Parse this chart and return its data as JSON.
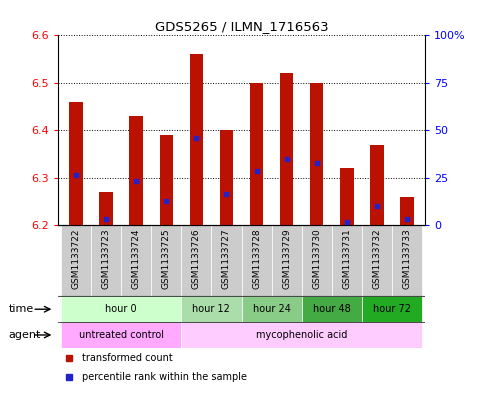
{
  "title": "GDS5265 / ILMN_1716563",
  "samples": [
    "GSM1133722",
    "GSM1133723",
    "GSM1133724",
    "GSM1133725",
    "GSM1133726",
    "GSM1133727",
    "GSM1133728",
    "GSM1133729",
    "GSM1133730",
    "GSM1133731",
    "GSM1133732",
    "GSM1133733"
  ],
  "bar_tops": [
    6.46,
    6.27,
    6.43,
    6.39,
    6.56,
    6.4,
    6.5,
    6.52,
    6.5,
    6.32,
    6.37,
    6.26
  ],
  "bar_bottom": 6.2,
  "percentile_values": [
    6.305,
    6.212,
    6.293,
    6.25,
    6.383,
    6.265,
    6.315,
    6.34,
    6.33,
    6.207,
    6.24,
    6.212
  ],
  "ylim_left": [
    6.2,
    6.6
  ],
  "ylim_right": [
    0,
    100
  ],
  "yticks_left": [
    6.2,
    6.3,
    6.4,
    6.5,
    6.6
  ],
  "yticks_right": [
    0,
    25,
    50,
    75,
    100
  ],
  "ytick_labels_right": [
    "0",
    "25",
    "50",
    "75",
    "100%"
  ],
  "bar_color": "#bb1100",
  "percentile_color": "#2222cc",
  "time_groups": [
    {
      "label": "hour 0",
      "start": 0,
      "end": 4,
      "color": "#ccffcc"
    },
    {
      "label": "hour 12",
      "start": 4,
      "end": 6,
      "color": "#aaddaa"
    },
    {
      "label": "hour 24",
      "start": 6,
      "end": 8,
      "color": "#88cc88"
    },
    {
      "label": "hour 48",
      "start": 8,
      "end": 10,
      "color": "#44aa44"
    },
    {
      "label": "hour 72",
      "start": 10,
      "end": 12,
      "color": "#22aa22"
    }
  ],
  "agent_groups": [
    {
      "label": "untreated control",
      "start": 0,
      "end": 4,
      "color": "#ffaaff"
    },
    {
      "label": "mycophenolic acid",
      "start": 4,
      "end": 12,
      "color": "#ffccff"
    }
  ],
  "legend_items": [
    {
      "label": "transformed count",
      "color": "#bb1100"
    },
    {
      "label": "percentile rank within the sample",
      "color": "#2222cc"
    }
  ],
  "grid_color": "black",
  "bar_width": 0.45
}
